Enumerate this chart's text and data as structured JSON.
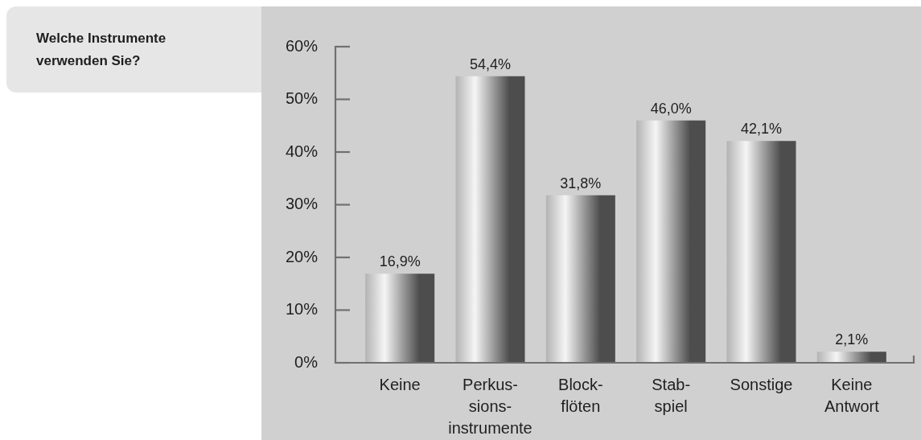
{
  "chart_data": {
    "type": "bar",
    "title": "Welche Instrumente verwenden Sie?",
    "categories": [
      "Keine",
      "Perkus-\nsions-\ninstrumente",
      "Block-\nflöten",
      "Stab-\nspiel",
      "Sonstige",
      "Keine\nAntwort"
    ],
    "values": [
      16.9,
      54.4,
      31.8,
      46.0,
      42.1,
      2.1
    ],
    "value_labels": [
      "16,9%",
      "54,4%",
      "31,8%",
      "46,0%",
      "42,1%",
      "2,1%"
    ],
    "color": "#999999",
    "ylim": [
      0,
      60
    ],
    "yticks": [
      {
        "value": 0,
        "label": "0%"
      },
      {
        "value": 10,
        "label": "10%"
      },
      {
        "value": 20,
        "label": "20%"
      },
      {
        "value": 30,
        "label": "30%"
      },
      {
        "value": 40,
        "label": "40%"
      },
      {
        "value": 50,
        "label": "50%"
      },
      {
        "value": 60,
        "label": "60%"
      }
    ]
  }
}
